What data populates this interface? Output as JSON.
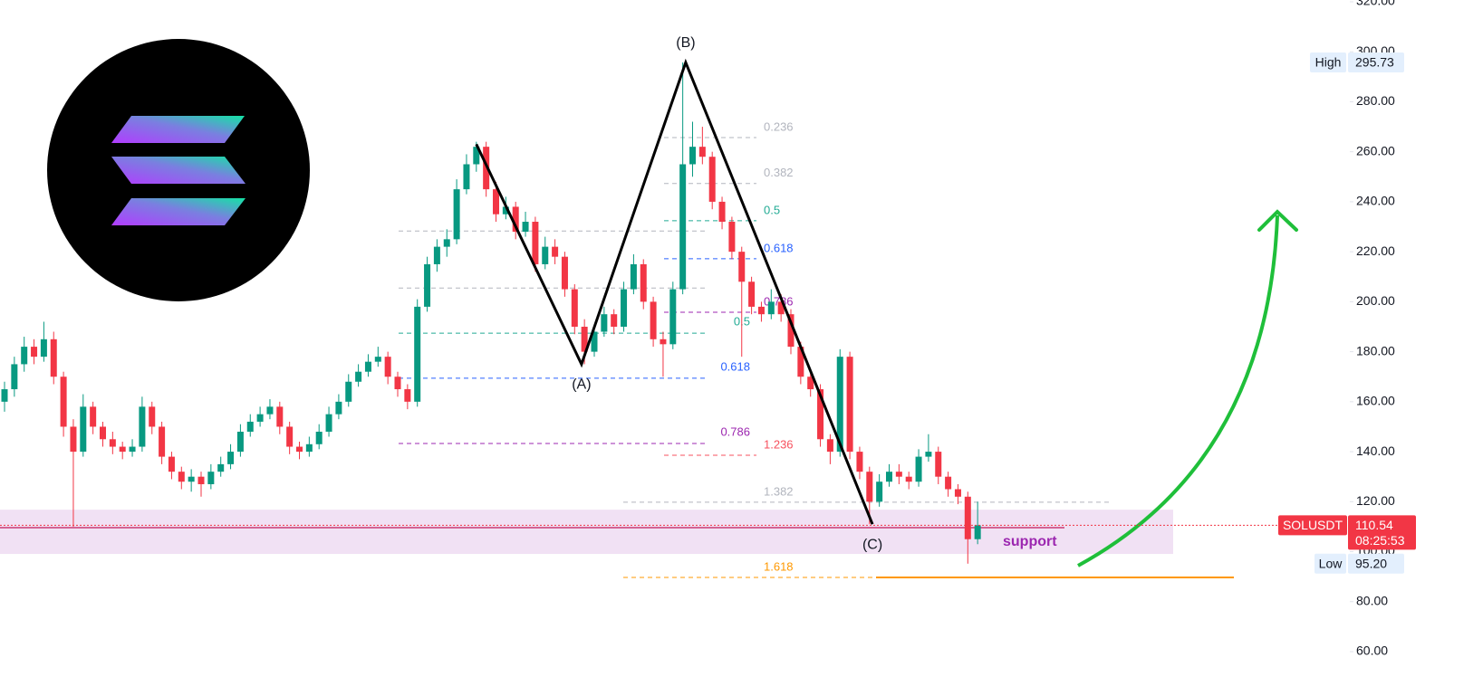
{
  "chart_data": {
    "type": "candlestick",
    "up_color": "#089981",
    "down_color": "#f23645",
    "ylim": [
      44.07,
      320.72
    ],
    "yticks": [
      {
        "value": 60,
        "label": "60.00"
      },
      {
        "value": 80,
        "label": "80.00"
      },
      {
        "value": 100,
        "label": "100.00"
      },
      {
        "value": 120,
        "label": "120.00"
      },
      {
        "value": 140,
        "label": "140.00"
      },
      {
        "value": 160,
        "label": "160.00"
      },
      {
        "value": 180,
        "label": "180.00"
      },
      {
        "value": 200,
        "label": "200.00"
      },
      {
        "value": 220,
        "label": "220.00"
      },
      {
        "value": 240,
        "label": "240.00"
      },
      {
        "value": 260,
        "label": "260.00"
      },
      {
        "value": 280,
        "label": "280.00"
      },
      {
        "value": 300,
        "label": "300.00"
      },
      {
        "value": 320,
        "label": "320.00"
      }
    ],
    "candles": [
      [
        160,
        168,
        156,
        165
      ],
      [
        165,
        178,
        162,
        175
      ],
      [
        175,
        186,
        172,
        182
      ],
      [
        182,
        185,
        175,
        178
      ],
      [
        178,
        192,
        176,
        185
      ],
      [
        185,
        188,
        167,
        170
      ],
      [
        170,
        172,
        146,
        150
      ],
      [
        150,
        153,
        110,
        140
      ],
      [
        140,
        163,
        138,
        158
      ],
      [
        158,
        160,
        147,
        150
      ],
      [
        150,
        152,
        142,
        145
      ],
      [
        145,
        148,
        139,
        142
      ],
      [
        142,
        144,
        137,
        140
      ],
      [
        140,
        145,
        138,
        142
      ],
      [
        142,
        162,
        140,
        158
      ],
      [
        158,
        160,
        147,
        150
      ],
      [
        150,
        152,
        135,
        138
      ],
      [
        138,
        140,
        129,
        132
      ],
      [
        132,
        134,
        125,
        128
      ],
      [
        128,
        133,
        124,
        130
      ],
      [
        130,
        132,
        122,
        127
      ],
      [
        127,
        135,
        125,
        132
      ],
      [
        132,
        138,
        130,
        135
      ],
      [
        135,
        143,
        133,
        140
      ],
      [
        140,
        151,
        138,
        148
      ],
      [
        148,
        155,
        146,
        152
      ],
      [
        152,
        158,
        150,
        155
      ],
      [
        155,
        161,
        153,
        158
      ],
      [
        158,
        160,
        147,
        150
      ],
      [
        150,
        152,
        139,
        142
      ],
      [
        142,
        144,
        137,
        140
      ],
      [
        140,
        146,
        138,
        143
      ],
      [
        143,
        151,
        141,
        148
      ],
      [
        148,
        158,
        146,
        155
      ],
      [
        155,
        163,
        153,
        160
      ],
      [
        160,
        171,
        158,
        168
      ],
      [
        168,
        175,
        166,
        172
      ],
      [
        172,
        179,
        170,
        176
      ],
      [
        176,
        182,
        174,
        178
      ],
      [
        178,
        180,
        167,
        170
      ],
      [
        170,
        172,
        162,
        165
      ],
      [
        165,
        167,
        157,
        160
      ],
      [
        160,
        201,
        158,
        198
      ],
      [
        198,
        218,
        196,
        215
      ],
      [
        215,
        225,
        212,
        222
      ],
      [
        222,
        229,
        218,
        225
      ],
      [
        225,
        249,
        223,
        245
      ],
      [
        245,
        259,
        243,
        255
      ],
      [
        255,
        264,
        252,
        262
      ],
      [
        262,
        264,
        242,
        245
      ],
      [
        245,
        248,
        232,
        235
      ],
      [
        235,
        242,
        233,
        238
      ],
      [
        238,
        240,
        225,
        228
      ],
      [
        228,
        236,
        226,
        232
      ],
      [
        232,
        234,
        212,
        215
      ],
      [
        215,
        226,
        213,
        222
      ],
      [
        222,
        225,
        215,
        218
      ],
      [
        218,
        220,
        202,
        205
      ],
      [
        205,
        207,
        187,
        190
      ],
      [
        190,
        193,
        175,
        180
      ],
      [
        180,
        191,
        178,
        188
      ],
      [
        188,
        198,
        186,
        195
      ],
      [
        195,
        197,
        187,
        190
      ],
      [
        190,
        208,
        188,
        205
      ],
      [
        205,
        219,
        203,
        215
      ],
      [
        215,
        217,
        197,
        200
      ],
      [
        200,
        202,
        182,
        185
      ],
      [
        185,
        188,
        170,
        183
      ],
      [
        183,
        208,
        181,
        205
      ],
      [
        205,
        295.73,
        203,
        255
      ],
      [
        255,
        272,
        250,
        262
      ],
      [
        262,
        270,
        255,
        258
      ],
      [
        258,
        260,
        237,
        240
      ],
      [
        240,
        242,
        229,
        232
      ],
      [
        232,
        234,
        217,
        220
      ],
      [
        220,
        222,
        178,
        208
      ],
      [
        208,
        210,
        195,
        198
      ],
      [
        198,
        200,
        192,
        195
      ],
      [
        195,
        205,
        193,
        200
      ],
      [
        200,
        203,
        192,
        195
      ],
      [
        195,
        197,
        179,
        182
      ],
      [
        182,
        184,
        167,
        170
      ],
      [
        170,
        172,
        162,
        165
      ],
      [
        165,
        167,
        142,
        145
      ],
      [
        145,
        147,
        135,
        140
      ],
      [
        140,
        181,
        138,
        178
      ],
      [
        178,
        180,
        137,
        140
      ],
      [
        140,
        142,
        129,
        132
      ],
      [
        132,
        134,
        111,
        120
      ],
      [
        120,
        131,
        118,
        128
      ],
      [
        128,
        135,
        126,
        132
      ],
      [
        132,
        135,
        127,
        130
      ],
      [
        130,
        132,
        125,
        128
      ],
      [
        128,
        141,
        126,
        138
      ],
      [
        138,
        147,
        136,
        140
      ],
      [
        140,
        142,
        127,
        130
      ],
      [
        130,
        132,
        122,
        125
      ],
      [
        125,
        127,
        119,
        122
      ],
      [
        122,
        124,
        95.2,
        105
      ],
      [
        105,
        120,
        103,
        110.54
      ]
    ],
    "wave": [
      {
        "x": 48,
        "price": 263
      },
      {
        "label": "(A)",
        "x": 58.7,
        "price": 175
      },
      {
        "label": "(B)",
        "x": 69.3,
        "price": 295.73
      },
      {
        "label": "(C)",
        "x": 88.3,
        "price": 111
      }
    ],
    "fib_lower": [
      {
        "price": 228.3,
        "color": "#b2b5be"
      },
      {
        "price": 205.5,
        "color": "#b2b5be"
      },
      {
        "label": "0.5",
        "price": 187.4,
        "color": "#22ab94"
      },
      {
        "label": "0.618",
        "price": 169.4,
        "color": "#2962ff"
      },
      {
        "label": "0.786",
        "price": 143.3,
        "color": "#9c27b0"
      }
    ],
    "fib_upper": [
      {
        "label": "0.236",
        "price": 265.7,
        "color": "#b2b5be"
      },
      {
        "label": "0.382",
        "price": 247.3,
        "color": "#b2b5be"
      },
      {
        "label": "0.5",
        "price": 232.4,
        "color": "#22ab94"
      },
      {
        "label": "0.618",
        "price": 217.2,
        "color": "#2962ff"
      },
      {
        "label": "0.786",
        "price": 195.8,
        "color": "#9c27b0"
      }
    ],
    "fib_extension": [
      {
        "label": "1.236",
        "price": 138.6,
        "color": "#f7525f"
      },
      {
        "label": "1.382",
        "price": 119.8,
        "color": "#b2b5be"
      },
      {
        "label": "1.618",
        "price": 89.7,
        "color": "#ff9800"
      }
    ],
    "support": {
      "label": "support",
      "low": 99.1,
      "high": 116.8,
      "line": 109.6
    },
    "high": {
      "label": "High",
      "value": 295.73
    },
    "low": {
      "label": "Low",
      "value": {
        "value": 95.2,
        "label": "95.20"
      }
    },
    "last": {
      "symbol": "SOLUSDT",
      "price": 110.54,
      "countdown": "08:25:53"
    }
  }
}
